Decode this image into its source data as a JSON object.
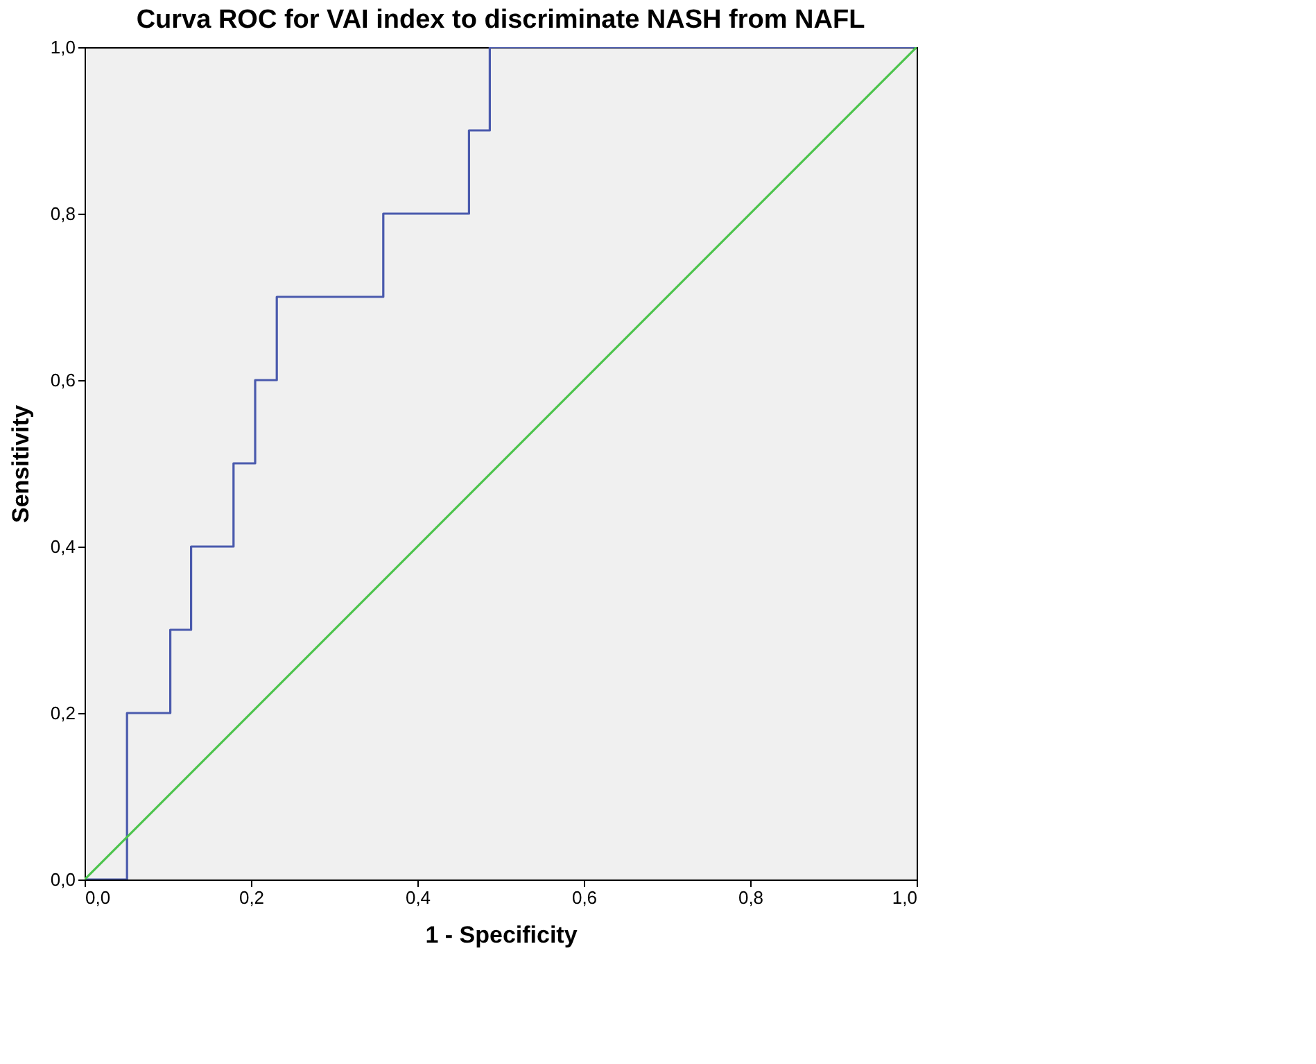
{
  "chart_data": {
    "type": "step",
    "title": "Curva ROC for VAI index to discriminate NASH from NAFL",
    "xlabel": "1 - Specificity",
    "ylabel": "Sensitivity",
    "series": [
      {
        "color": "#4a5aad",
        "x": [
          0,
          0.051,
          0.103,
          0.128,
          0.179,
          0.205,
          0.231,
          0.359,
          0.462,
          0.487,
          1
        ],
        "values": [
          0,
          0.2,
          0.3,
          0.4,
          0.5,
          0.6,
          0.7,
          0.8,
          0.9,
          1,
          1
        ]
      },
      {
        "type": "line",
        "color": "#4cc44c",
        "x": [
          0,
          1
        ],
        "values": [
          0,
          1
        ]
      }
    ],
    "xlim": [
      0,
      1
    ],
    "ylim": [
      0,
      1
    ],
    "xticks": [
      {
        "value": 0,
        "label": "0,0"
      },
      {
        "value": 0.2,
        "label": "0,2"
      },
      {
        "value": 0.4,
        "label": "0,4"
      },
      {
        "value": 0.6,
        "label": "0,6"
      },
      {
        "value": 0.8,
        "label": "0,8"
      },
      {
        "value": 1,
        "label": "1,0"
      }
    ],
    "yticks": [
      {
        "value": 0,
        "label": "0,0"
      },
      {
        "value": 0.2,
        "label": "0,2"
      },
      {
        "value": 0.4,
        "label": "0,4"
      },
      {
        "value": 0.6,
        "label": "0,6"
      },
      {
        "value": 0.8,
        "label": "0,8"
      },
      {
        "value": 1,
        "label": "1,0"
      }
    ],
    "grid": false
  }
}
